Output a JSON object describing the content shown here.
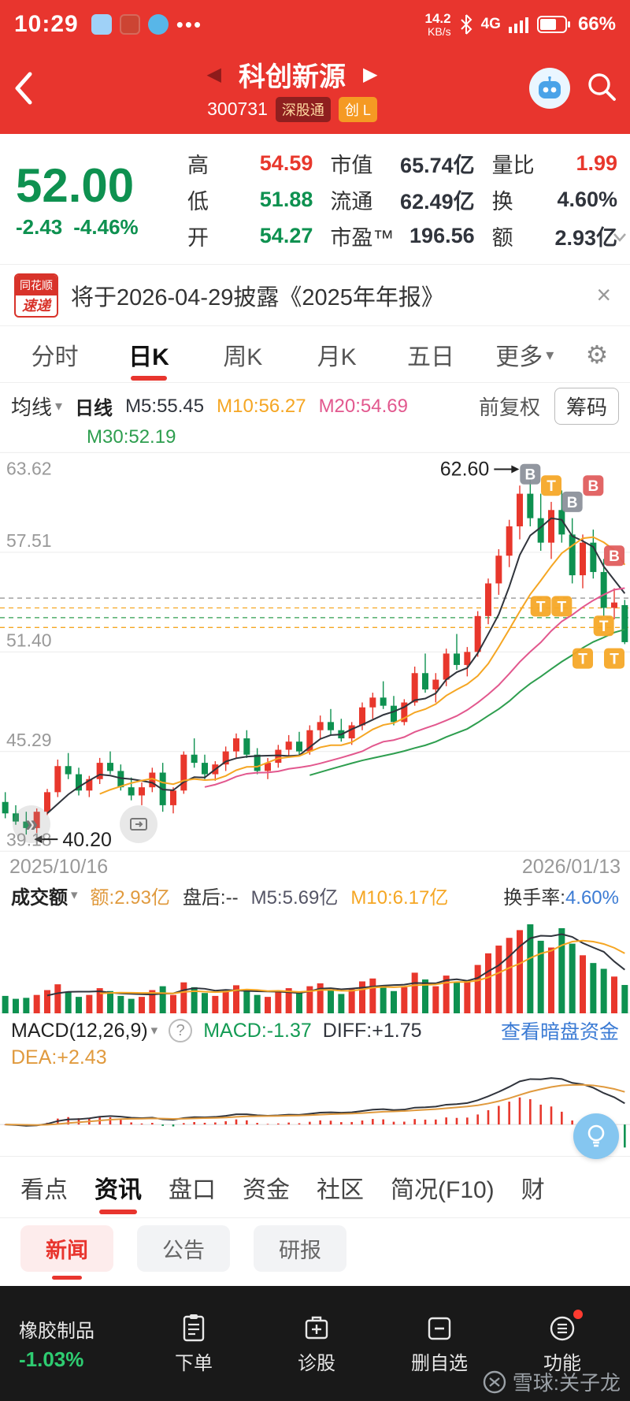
{
  "icons": {
    "gear": "⚙",
    "caret_down": "▾",
    "close": "×",
    "prev": "◀",
    "next": "▶",
    "chevrons": "»",
    "dots": "•••",
    "help": "?"
  },
  "status_bar": {
    "time": "10:29",
    "speed": "14.2",
    "speed_unit": "KB/s",
    "network": "4G",
    "battery_pct": "66%"
  },
  "nav": {
    "title": "科创新源",
    "code": "300731",
    "badge1": "深股通",
    "badge2": "创 L"
  },
  "quote": {
    "price": "52.00",
    "change": "-2.43",
    "change_pct": "-4.46%",
    "fields": [
      {
        "label": "高",
        "value": "54.59",
        "color": "#e8372c"
      },
      {
        "label": "低",
        "value": "51.88",
        "color": "#0e9150"
      },
      {
        "label": "开",
        "value": "54.27",
        "color": "#0e9150"
      },
      {
        "label": "市值",
        "value": "65.74亿",
        "color": "#30343c"
      },
      {
        "label": "流通",
        "value": "62.49亿",
        "color": "#30343c"
      },
      {
        "label": "市盈™",
        "value": "196.56",
        "color": "#30343c"
      },
      {
        "label": "量比",
        "value": "1.99",
        "color": "#e8372c"
      },
      {
        "label": "换",
        "value": "4.60%",
        "color": "#30343c"
      },
      {
        "label": "额",
        "value": "2.93亿",
        "color": "#30343c"
      }
    ]
  },
  "banner": {
    "logo_top": "同花顺",
    "logo_bottom": "速递",
    "text": "将于2026-04-29披露《2025年年报》"
  },
  "period_tabs": {
    "items": [
      {
        "label": "分时"
      },
      {
        "label": "日K"
      },
      {
        "label": "周K"
      },
      {
        "label": "月K"
      },
      {
        "label": "五日"
      },
      {
        "label": "更多"
      }
    ]
  },
  "ma_bar": {
    "dropdown_label": "均线",
    "period_label": "日线",
    "m5": "M5:55.45",
    "m10": "M10:56.27",
    "m20": "M20:54.69",
    "m30": "M30:52.19",
    "adjust_label": "前复权",
    "chips_label": "筹码"
  },
  "date_axis": {
    "start": "2025/10/16",
    "end": "2026/01/13"
  },
  "volume_header": {
    "dropdown_label": "成交额",
    "amount": "额:2.93亿",
    "after_hours": "盘后:--",
    "m5": "M5:5.69亿",
    "m10": "M10:6.17亿",
    "turnover_label": "换手率:",
    "turnover_value": "4.60%"
  },
  "macd_header": {
    "indicator_label": "MACD(12,26,9)",
    "macd": "MACD:-1.37",
    "diff": "DIFF:+1.75",
    "dea": "DEA:+2.43",
    "dark_pool_link": "查看暗盘资金"
  },
  "section_tabs": {
    "items": [
      {
        "label": "看点"
      },
      {
        "label": "资讯"
      },
      {
        "label": "盘口"
      },
      {
        "label": "资金"
      },
      {
        "label": "社区"
      },
      {
        "label": "简况(F10)"
      },
      {
        "label": "财"
      }
    ]
  },
  "news_tabs": {
    "items": [
      {
        "label": "新闻"
      },
      {
        "label": "公告"
      },
      {
        "label": "研报"
      }
    ]
  },
  "toolbar": {
    "sector_name": "橡胶制品",
    "sector_change": "-1.03%",
    "order": "下单",
    "diagnose": "诊股",
    "remove": "删自选",
    "functions": "功能"
  },
  "watermark": "雪球:关子龙",
  "chart_data": {
    "type": "candlestick",
    "title": "科创新源 300731 日K",
    "y_ticks": [
      63.62,
      57.51,
      51.4,
      45.29,
      39.18
    ],
    "price_range": [
      39.18,
      63.62
    ],
    "dates_range": [
      "2025/10/16",
      "2026/01/13"
    ],
    "up_color": "#e8372c",
    "down_color": "#0e9150",
    "ma_colors": {
      "m5": "#30343c",
      "m10": "#f5a623",
      "m20": "#e2588e",
      "m30": "#2e9e4f"
    },
    "volume_ma_colors": {
      "m5": "#30343c",
      "m10": "#f5a623"
    },
    "macd_params": [
      12,
      26,
      9
    ],
    "macd_colors": {
      "diff": "#30343c",
      "dea": "#e09a3e"
    },
    "high_annotation": {
      "label": "62.60",
      "index": 50,
      "price": 62.6
    },
    "low_annotation": {
      "label": "40.20",
      "index": 2,
      "price": 40.2
    },
    "ref_lines": [
      {
        "p": 54.7,
        "c": "#999999"
      },
      {
        "p": 54.1,
        "c": "#f5a623"
      },
      {
        "p": 53.5,
        "c": "#2e9e4f"
      },
      {
        "p": 52.9,
        "c": "#f5a623"
      }
    ],
    "markers": [
      {
        "i": 50,
        "p": 62.3,
        "t": "B",
        "c": "#8a8f99"
      },
      {
        "i": 52,
        "p": 61.6,
        "t": "T",
        "c": "#f5a623"
      },
      {
        "i": 54,
        "p": 60.6,
        "t": "B",
        "c": "#8a8f99"
      },
      {
        "i": 56,
        "p": 61.6,
        "t": "B",
        "c": "#e05a5a"
      },
      {
        "i": 58,
        "p": 57.3,
        "t": "B",
        "c": "#e05a5a"
      },
      {
        "i": 51,
        "p": 54.2,
        "t": "T",
        "c": "#f5a623"
      },
      {
        "i": 53,
        "p": 54.2,
        "t": "T",
        "c": "#f5a623"
      },
      {
        "i": 57,
        "p": 53.0,
        "t": "T",
        "c": "#f5a623"
      },
      {
        "i": 55,
        "p": 51.0,
        "t": "T",
        "c": "#f5a623"
      },
      {
        "i": 58,
        "p": 51.0,
        "t": "T",
        "c": "#f5a623"
      }
    ],
    "ohlc": [
      [
        42.2,
        42.8,
        41.2,
        41.5
      ],
      [
        41.5,
        42.0,
        40.8,
        41.0
      ],
      [
        41.0,
        41.6,
        40.2,
        40.6
      ],
      [
        40.6,
        41.8,
        40.3,
        41.6
      ],
      [
        41.6,
        43.0,
        41.4,
        42.8
      ],
      [
        42.8,
        44.8,
        42.5,
        44.4
      ],
      [
        44.4,
        45.2,
        43.6,
        43.9
      ],
      [
        43.9,
        44.3,
        42.6,
        42.9
      ],
      [
        42.9,
        43.8,
        42.5,
        43.6
      ],
      [
        43.6,
        44.9,
        43.3,
        44.6
      ],
      [
        44.6,
        45.3,
        43.9,
        44.1
      ],
      [
        44.1,
        44.5,
        42.9,
        43.1
      ],
      [
        43.1,
        43.7,
        42.3,
        42.6
      ],
      [
        42.6,
        43.4,
        42.0,
        43.1
      ],
      [
        43.1,
        44.3,
        42.8,
        44.0
      ],
      [
        44.0,
        44.6,
        41.6,
        42.0
      ],
      [
        42.0,
        43.1,
        41.5,
        42.9
      ],
      [
        42.9,
        45.3,
        42.7,
        45.1
      ],
      [
        45.1,
        46.1,
        44.3,
        44.6
      ],
      [
        44.6,
        45.1,
        43.6,
        43.9
      ],
      [
        43.9,
        44.7,
        43.5,
        44.5
      ],
      [
        44.5,
        45.6,
        44.1,
        45.3
      ],
      [
        45.3,
        46.4,
        44.9,
        46.1
      ],
      [
        46.1,
        46.6,
        44.9,
        45.1
      ],
      [
        45.1,
        45.5,
        43.9,
        44.1
      ],
      [
        44.1,
        44.9,
        43.6,
        44.6
      ],
      [
        44.6,
        45.7,
        44.3,
        45.4
      ],
      [
        45.4,
        46.3,
        45.0,
        45.9
      ],
      [
        45.9,
        46.5,
        45.1,
        45.3
      ],
      [
        45.3,
        46.9,
        45.1,
        46.6
      ],
      [
        46.6,
        47.5,
        46.1,
        47.1
      ],
      [
        47.1,
        47.9,
        46.3,
        46.6
      ],
      [
        46.6,
        47.3,
        45.9,
        46.1
      ],
      [
        46.1,
        47.1,
        45.7,
        46.9
      ],
      [
        46.9,
        48.3,
        46.6,
        48.0
      ],
      [
        48.0,
        48.9,
        47.3,
        48.6
      ],
      [
        48.6,
        49.6,
        47.9,
        48.1
      ],
      [
        48.1,
        48.7,
        46.9,
        47.1
      ],
      [
        47.1,
        48.5,
        46.9,
        48.3
      ],
      [
        48.3,
        50.5,
        48.1,
        50.1
      ],
      [
        50.1,
        51.3,
        48.9,
        49.1
      ],
      [
        49.1,
        50.1,
        48.3,
        49.7
      ],
      [
        49.7,
        51.6,
        49.3,
        51.3
      ],
      [
        51.3,
        52.5,
        50.3,
        50.6
      ],
      [
        50.6,
        51.7,
        49.9,
        51.4
      ],
      [
        51.4,
        53.9,
        51.1,
        53.6
      ],
      [
        53.6,
        55.9,
        53.1,
        55.6
      ],
      [
        55.6,
        57.7,
        54.9,
        57.3
      ],
      [
        57.3,
        59.5,
        56.6,
        59.1
      ],
      [
        59.1,
        61.6,
        58.3,
        61.1
      ],
      [
        61.1,
        62.6,
        59.1,
        59.6
      ],
      [
        59.6,
        61.1,
        57.6,
        58.1
      ],
      [
        58.1,
        60.6,
        57.1,
        60.1
      ],
      [
        60.1,
        61.3,
        58.1,
        58.6
      ],
      [
        58.6,
        59.6,
        55.6,
        56.1
      ],
      [
        56.1,
        58.6,
        55.3,
        58.1
      ],
      [
        58.1,
        58.9,
        55.9,
        56.3
      ],
      [
        56.3,
        57.1,
        53.6,
        54.1
      ],
      [
        54.1,
        55.3,
        53.4,
        54.43
      ],
      [
        54.27,
        54.59,
        51.88,
        52.0
      ]
    ],
    "amounts": [
      1.8,
      1.5,
      1.6,
      1.9,
      2.4,
      3.0,
      2.2,
      1.7,
      1.9,
      2.6,
      2.3,
      1.8,
      1.5,
      1.7,
      2.4,
      2.8,
      1.9,
      3.2,
      2.7,
      2.1,
      1.8,
      2.3,
      2.9,
      2.5,
      1.9,
      1.7,
      2.2,
      2.6,
      2.1,
      2.8,
      3.1,
      2.4,
      2.0,
      2.5,
      3.3,
      3.6,
      2.9,
      2.3,
      2.7,
      4.2,
      3.5,
      2.8,
      3.9,
      3.2,
      3.4,
      5.0,
      6.2,
      7.0,
      7.8,
      8.6,
      9.2,
      7.5,
      6.8,
      8.8,
      7.2,
      6.0,
      5.2,
      4.6,
      3.8,
      2.93
    ]
  }
}
